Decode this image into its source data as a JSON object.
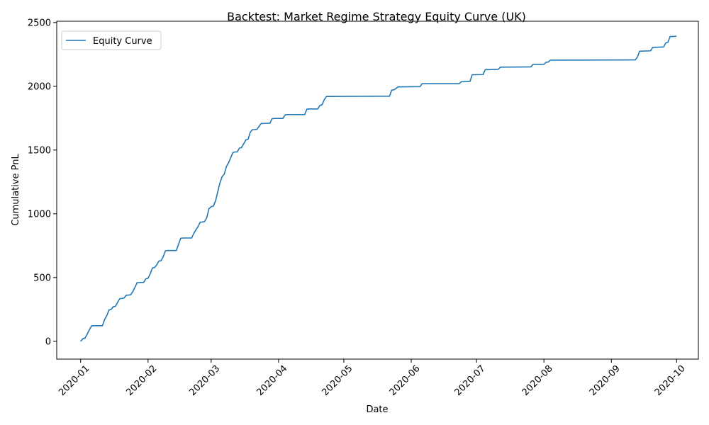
{
  "chart_data": {
    "type": "line",
    "title": "Backtest: Market Regime Strategy Equity Curve (UK)",
    "xlabel": "Date",
    "ylabel": "Cumulative PnL",
    "x_ticks": [
      "2020-01",
      "2020-02",
      "2020-03",
      "2020-04",
      "2020-05",
      "2020-06",
      "2020-07",
      "2020-08",
      "2020-09",
      "2020-10"
    ],
    "y_ticks": [
      0,
      500,
      1000,
      1500,
      2000,
      2500
    ],
    "xlim": [
      "2019-12-21",
      "2020-10-11"
    ],
    "ylim": [
      -140,
      2510
    ],
    "grid": false,
    "legend_position": "top-left",
    "series": [
      {
        "name": "Equity Curve",
        "color": "#1f77b4",
        "points": [
          [
            "2020-01-01",
            0
          ],
          [
            "2020-01-02",
            20
          ],
          [
            "2020-01-03",
            25
          ],
          [
            "2020-01-04",
            55
          ],
          [
            "2020-01-05",
            90
          ],
          [
            "2020-01-06",
            120
          ],
          [
            "2020-01-07",
            122
          ],
          [
            "2020-01-08",
            122
          ],
          [
            "2020-01-09",
            122
          ],
          [
            "2020-01-10",
            122
          ],
          [
            "2020-01-11",
            122
          ],
          [
            "2020-01-12",
            170
          ],
          [
            "2020-01-13",
            200
          ],
          [
            "2020-01-14",
            245
          ],
          [
            "2020-01-15",
            250
          ],
          [
            "2020-01-16",
            270
          ],
          [
            "2020-01-17",
            275
          ],
          [
            "2020-01-18",
            305
          ],
          [
            "2020-01-19",
            335
          ],
          [
            "2020-01-20",
            335
          ],
          [
            "2020-01-21",
            340
          ],
          [
            "2020-01-22",
            362
          ],
          [
            "2020-01-23",
            362
          ],
          [
            "2020-01-24",
            365
          ],
          [
            "2020-01-25",
            390
          ],
          [
            "2020-01-26",
            425
          ],
          [
            "2020-01-27",
            460
          ],
          [
            "2020-01-28",
            460
          ],
          [
            "2020-01-29",
            462
          ],
          [
            "2020-01-30",
            462
          ],
          [
            "2020-01-31",
            490
          ],
          [
            "2020-02-01",
            495
          ],
          [
            "2020-02-02",
            530
          ],
          [
            "2020-02-03",
            575
          ],
          [
            "2020-02-04",
            578
          ],
          [
            "2020-02-05",
            600
          ],
          [
            "2020-02-06",
            630
          ],
          [
            "2020-02-07",
            632
          ],
          [
            "2020-02-08",
            665
          ],
          [
            "2020-02-09",
            710
          ],
          [
            "2020-02-10",
            712
          ],
          [
            "2020-02-11",
            712
          ],
          [
            "2020-02-12",
            712
          ],
          [
            "2020-02-13",
            712
          ],
          [
            "2020-02-14",
            712
          ],
          [
            "2020-02-15",
            760
          ],
          [
            "2020-02-16",
            808
          ],
          [
            "2020-02-17",
            810
          ],
          [
            "2020-02-18",
            810
          ],
          [
            "2020-02-19",
            810
          ],
          [
            "2020-02-20",
            810
          ],
          [
            "2020-02-21",
            810
          ],
          [
            "2020-02-22",
            845
          ],
          [
            "2020-02-23",
            875
          ],
          [
            "2020-02-24",
            900
          ],
          [
            "2020-02-25",
            935
          ],
          [
            "2020-02-26",
            935
          ],
          [
            "2020-02-27",
            940
          ],
          [
            "2020-02-28",
            970
          ],
          [
            "2020-02-29",
            1040
          ],
          [
            "2020-03-01",
            1055
          ],
          [
            "2020-03-02",
            1060
          ],
          [
            "2020-03-03",
            1100
          ],
          [
            "2020-03-04",
            1170
          ],
          [
            "2020-03-05",
            1240
          ],
          [
            "2020-03-06",
            1290
          ],
          [
            "2020-03-07",
            1310
          ],
          [
            "2020-03-08",
            1370
          ],
          [
            "2020-03-09",
            1400
          ],
          [
            "2020-03-10",
            1440
          ],
          [
            "2020-03-11",
            1480
          ],
          [
            "2020-03-12",
            1485
          ],
          [
            "2020-03-13",
            1485
          ],
          [
            "2020-03-14",
            1515
          ],
          [
            "2020-03-15",
            1520
          ],
          [
            "2020-03-16",
            1550
          ],
          [
            "2020-03-17",
            1580
          ],
          [
            "2020-03-18",
            1585
          ],
          [
            "2020-03-19",
            1640
          ],
          [
            "2020-03-20",
            1660
          ],
          [
            "2020-03-21",
            1660
          ],
          [
            "2020-03-22",
            1662
          ],
          [
            "2020-03-23",
            1685
          ],
          [
            "2020-03-24",
            1708
          ],
          [
            "2020-03-25",
            1708
          ],
          [
            "2020-03-26",
            1710
          ],
          [
            "2020-03-27",
            1710
          ],
          [
            "2020-03-28",
            1710
          ],
          [
            "2020-03-29",
            1745
          ],
          [
            "2020-03-30",
            1748
          ],
          [
            "2020-03-31",
            1748
          ],
          [
            "2020-04-01",
            1748
          ],
          [
            "2020-04-02",
            1748
          ],
          [
            "2020-04-03",
            1748
          ],
          [
            "2020-04-04",
            1775
          ],
          [
            "2020-04-05",
            1778
          ],
          [
            "2020-04-13",
            1778
          ],
          [
            "2020-04-14",
            1820
          ],
          [
            "2020-04-15",
            1822
          ],
          [
            "2020-04-19",
            1822
          ],
          [
            "2020-04-20",
            1850
          ],
          [
            "2020-04-21",
            1855
          ],
          [
            "2020-04-22",
            1895
          ],
          [
            "2020-04-23",
            1920
          ],
          [
            "2020-05-22",
            1922
          ],
          [
            "2020-05-23",
            1970
          ],
          [
            "2020-05-24",
            1972
          ],
          [
            "2020-05-26",
            1995
          ],
          [
            "2020-06-05",
            1997
          ],
          [
            "2020-06-06",
            2020
          ],
          [
            "2020-06-23",
            2020
          ],
          [
            "2020-06-24",
            2035
          ],
          [
            "2020-06-28",
            2038
          ],
          [
            "2020-06-29",
            2090
          ],
          [
            "2020-07-04",
            2092
          ],
          [
            "2020-07-05",
            2130
          ],
          [
            "2020-07-11",
            2133
          ],
          [
            "2020-07-12",
            2150
          ],
          [
            "2020-07-26",
            2152
          ],
          [
            "2020-07-27",
            2172
          ],
          [
            "2020-08-01",
            2172
          ],
          [
            "2020-08-02",
            2188
          ],
          [
            "2020-08-03",
            2190
          ],
          [
            "2020-08-04",
            2205
          ],
          [
            "2020-09-12",
            2207
          ],
          [
            "2020-09-13",
            2230
          ],
          [
            "2020-09-14",
            2275
          ],
          [
            "2020-09-19",
            2278
          ],
          [
            "2020-09-20",
            2305
          ],
          [
            "2020-09-25",
            2308
          ],
          [
            "2020-09-26",
            2340
          ],
          [
            "2020-09-27",
            2345
          ],
          [
            "2020-09-28",
            2390
          ],
          [
            "2020-10-01",
            2392
          ]
        ]
      }
    ]
  }
}
